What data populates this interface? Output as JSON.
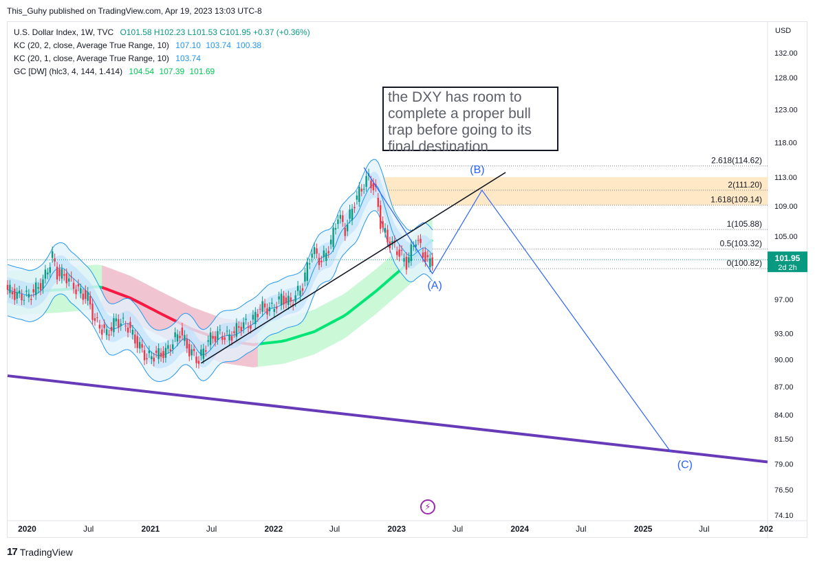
{
  "publish_line": "This_Guhy published on TradingView.com, Apr 19, 2023 13:03 UTC-8",
  "legend": {
    "symbol_label": "U.S. Dollar Index, 1W, TVC",
    "ohlc": "O101.58  H102.23  L101.53  C101.95  +0.37 (+0.36%)",
    "kc1_label": "KC (20, 2, close, Average True Range, 10)",
    "kc1_values": [
      "107.10",
      "103.74",
      "100.38"
    ],
    "kc2_label": "KC (20, 1, close, Average True Range, 10)",
    "kc2_values": [
      "103.74"
    ],
    "gc_label": "GC [DW] (hlc3, 4, 144, 1.414)",
    "gc_values": [
      "104.54",
      "107.39",
      "101.69"
    ]
  },
  "annotation_lines": [
    "the DXY has room to",
    "complete a proper bull",
    "trap before going to its",
    "final destination"
  ],
  "footer_brand": "TradingView",
  "logo_text": "17",
  "bolt_glyph": "⚡",
  "colors": {
    "up_candle": "#089981",
    "down_candle": "#f23645",
    "keltner": "#2196f3",
    "gc_green": "#00e676",
    "gc_red": "#ff1744",
    "trend_line": "#131722",
    "support_line": "#673ab7",
    "wave_line": "#2962ff",
    "fib_zone": "#ffe0b2",
    "price_tag": "#089981"
  },
  "chart_data": {
    "type": "line",
    "currency": "USD",
    "scale": "log",
    "ylim": [
      73.6,
      137.2
    ],
    "y_ticks": [
      "74.10",
      "76.50",
      "79.00",
      "81.50",
      "84.00",
      "87.00",
      "90.00",
      "93.00",
      "97.00",
      "101.00",
      "105.00",
      "109.00",
      "113.00",
      "118.00",
      "123.00",
      "128.00",
      "132.00"
    ],
    "x_ticks": [
      {
        "label": "2020",
        "date": "2020-01-01",
        "bold": true
      },
      {
        "label": "Jul",
        "date": "2020-07-01",
        "bold": false
      },
      {
        "label": "2021",
        "date": "2021-01-01",
        "bold": true
      },
      {
        "label": "Jul",
        "date": "2021-07-01",
        "bold": false
      },
      {
        "label": "2022",
        "date": "2022-01-01",
        "bold": true
      },
      {
        "label": "Jul",
        "date": "2022-07-01",
        "bold": false
      },
      {
        "label": "2023",
        "date": "2023-01-01",
        "bold": true
      },
      {
        "label": "Jul",
        "date": "2023-07-01",
        "bold": false
      },
      {
        "label": "2024",
        "date": "2024-01-01",
        "bold": true
      },
      {
        "label": "Jul",
        "date": "2024-07-01",
        "bold": false
      },
      {
        "label": "2025",
        "date": "2025-01-01",
        "bold": true
      },
      {
        "label": "Jul",
        "date": "2025-07-01",
        "bold": false
      },
      {
        "label": "202",
        "date": "2026-01-01",
        "bold": true
      }
    ],
    "close_series": [
      {
        "date": "2019-11-04",
        "value": 98.2
      },
      {
        "date": "2019-12-02",
        "value": 97.5
      },
      {
        "date": "2020-01-06",
        "value": 97.4
      },
      {
        "date": "2020-02-17",
        "value": 99.2
      },
      {
        "date": "2020-03-16",
        "value": 102.4
      },
      {
        "date": "2020-03-30",
        "value": 100.2
      },
      {
        "date": "2020-04-27",
        "value": 99.8
      },
      {
        "date": "2020-05-25",
        "value": 98.3
      },
      {
        "date": "2020-06-29",
        "value": 97.2
      },
      {
        "date": "2020-07-20",
        "value": 94.4
      },
      {
        "date": "2020-08-24",
        "value": 92.9
      },
      {
        "date": "2020-09-21",
        "value": 94.5
      },
      {
        "date": "2020-10-26",
        "value": 93.8
      },
      {
        "date": "2020-11-23",
        "value": 91.8
      },
      {
        "date": "2020-12-21",
        "value": 90.2
      },
      {
        "date": "2021-01-11",
        "value": 90.5
      },
      {
        "date": "2021-02-15",
        "value": 90.8
      },
      {
        "date": "2021-03-29",
        "value": 93.2
      },
      {
        "date": "2021-04-26",
        "value": 91.0
      },
      {
        "date": "2021-05-24",
        "value": 89.9
      },
      {
        "date": "2021-06-21",
        "value": 92.2
      },
      {
        "date": "2021-07-19",
        "value": 92.9
      },
      {
        "date": "2021-08-23",
        "value": 92.6
      },
      {
        "date": "2021-09-27",
        "value": 94.0
      },
      {
        "date": "2021-10-25",
        "value": 94.1
      },
      {
        "date": "2021-11-22",
        "value": 96.1
      },
      {
        "date": "2021-12-27",
        "value": 95.9
      },
      {
        "date": "2022-01-24",
        "value": 97.2
      },
      {
        "date": "2022-02-21",
        "value": 96.6
      },
      {
        "date": "2022-03-28",
        "value": 98.8
      },
      {
        "date": "2022-04-25",
        "value": 103.2
      },
      {
        "date": "2022-05-23",
        "value": 101.7
      },
      {
        "date": "2022-06-20",
        "value": 104.2
      },
      {
        "date": "2022-07-11",
        "value": 107.8
      },
      {
        "date": "2022-08-01",
        "value": 105.8
      },
      {
        "date": "2022-08-29",
        "value": 109.6
      },
      {
        "date": "2022-09-26",
        "value": 112.1
      },
      {
        "date": "2022-10-10",
        "value": 113.0
      },
      {
        "date": "2022-10-31",
        "value": 110.8
      },
      {
        "date": "2022-11-14",
        "value": 106.8
      },
      {
        "date": "2022-12-05",
        "value": 104.5
      },
      {
        "date": "2023-01-02",
        "value": 103.2
      },
      {
        "date": "2023-01-30",
        "value": 101.5
      },
      {
        "date": "2023-02-27",
        "value": 104.7
      },
      {
        "date": "2023-03-20",
        "value": 102.8
      },
      {
        "date": "2023-04-03",
        "value": 101.6
      },
      {
        "date": "2023-04-17",
        "value": 101.95
      }
    ],
    "last_price": {
      "value": 101.95,
      "label": "101.95",
      "countdown": "2d 2h"
    },
    "fib_levels": [
      {
        "label": "2.618(114.62)",
        "value": 114.62
      },
      {
        "label": "2(111.20)",
        "value": 111.2
      },
      {
        "label": "1.618(109.14)",
        "value": 109.14
      },
      {
        "label": "1(105.88)",
        "value": 105.88
      },
      {
        "label": "0.5(103.32)",
        "value": 103.32
      },
      {
        "label": "0(100.82)",
        "value": 100.82
      }
    ],
    "fib_zone": [
      109.14,
      111.2
    ],
    "wave_path": [
      {
        "date": "2022-09-26",
        "value": 114.4
      },
      {
        "date": "2023-04-17",
        "value": 100.2
      },
      {
        "date": "2023-09-11",
        "value": 111.2
      },
      {
        "date": "2025-03-24",
        "value": 80.2
      }
    ],
    "wave_labels": [
      {
        "text": "(A)",
        "date": "2023-04-24",
        "value": 98.3
      },
      {
        "text": "(B)",
        "date": "2023-08-28",
        "value": 113.6
      },
      {
        "text": "(C)",
        "date": "2025-05-05",
        "value": 78.6
      }
    ],
    "trend_line": [
      {
        "date": "2021-05-31",
        "value": 89.6
      },
      {
        "date": "2023-11-20",
        "value": 113.7
      }
    ],
    "support_line": [
      {
        "date": "2019-11-04",
        "value": 88.2
      },
      {
        "date": "2026-01-05",
        "value": 79.2
      }
    ],
    "gc_center": [
      {
        "date": "2019-11-04",
        "value": 97.8
      },
      {
        "date": "2020-04-06",
        "value": 98.2
      },
      {
        "date": "2020-08-03",
        "value": 98.6
      },
      {
        "date": "2020-11-02",
        "value": 97.2
      },
      {
        "date": "2021-02-01",
        "value": 95.3
      },
      {
        "date": "2021-05-03",
        "value": 93.5
      },
      {
        "date": "2021-08-02",
        "value": 92.2
      },
      {
        "date": "2021-11-01",
        "value": 91.7
      },
      {
        "date": "2022-01-31",
        "value": 92.1
      },
      {
        "date": "2022-05-02",
        "value": 93.2
      },
      {
        "date": "2022-08-01",
        "value": 95.1
      },
      {
        "date": "2022-10-31",
        "value": 98.0
      },
      {
        "date": "2023-01-30",
        "value": 101.3
      },
      {
        "date": "2023-04-17",
        "value": 104.54
      }
    ],
    "gc_band_width_pct": 2.8,
    "gc_red_range": [
      "2020-08-03",
      "2021-11-22"
    ]
  }
}
